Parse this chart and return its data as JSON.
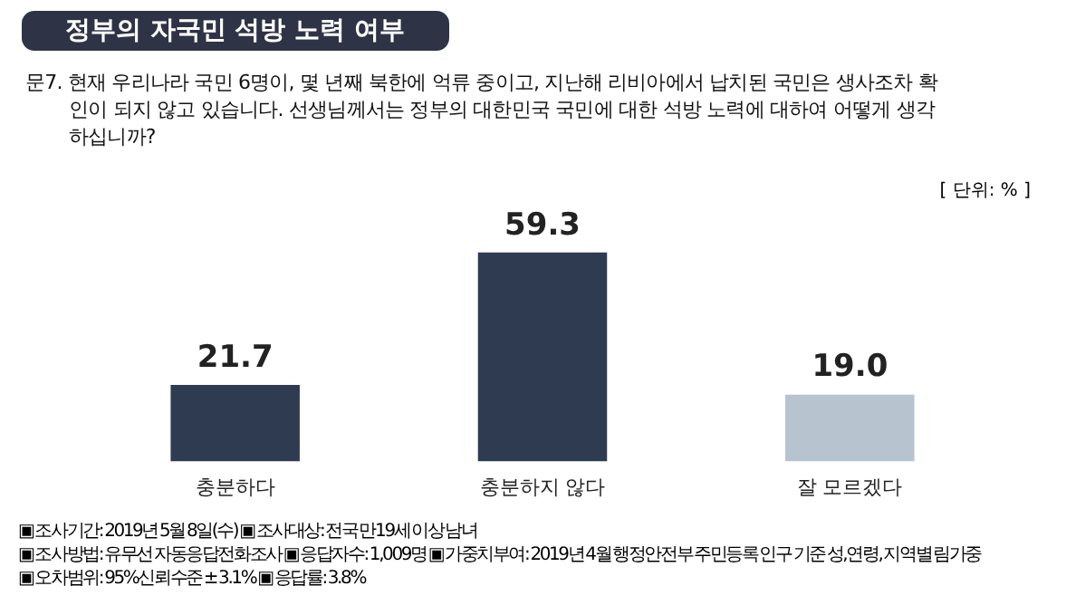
{
  "chart_data": {
    "type": "bar",
    "title": "정부의 자국민 석방 노력 여부",
    "subtitle": "문7. 현재 우리나라 국민 6명이, 몇 년째 북한에 억류 중이고, 지난해 리비아에서 납치된 국민은 생사조차 확인이 되지 않고 있습니다. 선생님께서는 정부의 대한민국 국민에 대한 석방 노력에 대하여 어떻게 생각하십니까?",
    "categories": [
      "충분하다",
      "충분하지 않다",
      "잘 모르겠다"
    ],
    "values": [
      21.7,
      59.3,
      19.0
    ],
    "colors": [
      "#2e3b51",
      "#2e3b51",
      "#b7c3cf"
    ],
    "value_labels": [
      "21.7",
      "59.3",
      "19.0"
    ],
    "annotations": [
      "[ 단위: % ]",
      "▣ 조사기간: 2019년 5월 8일(수) ▣ 조사대상: 전국 만19세 이상 남녀",
      "▣ 조사방법: 유무선 자동응답전화조사 ▣ 응답자수: 1,009명 ▣ 가중치부여: 2019년 4월 행정안전부 주민등록 인구 기준 성,연령, 지역별 림가중",
      "▣ 오차범위: 95%신뢰수준 ± 3.1% ▣ 응답률: 3.8%"
    ],
    "grid": false,
    "legend": false,
    "tick_labels": "x"
  }
}
